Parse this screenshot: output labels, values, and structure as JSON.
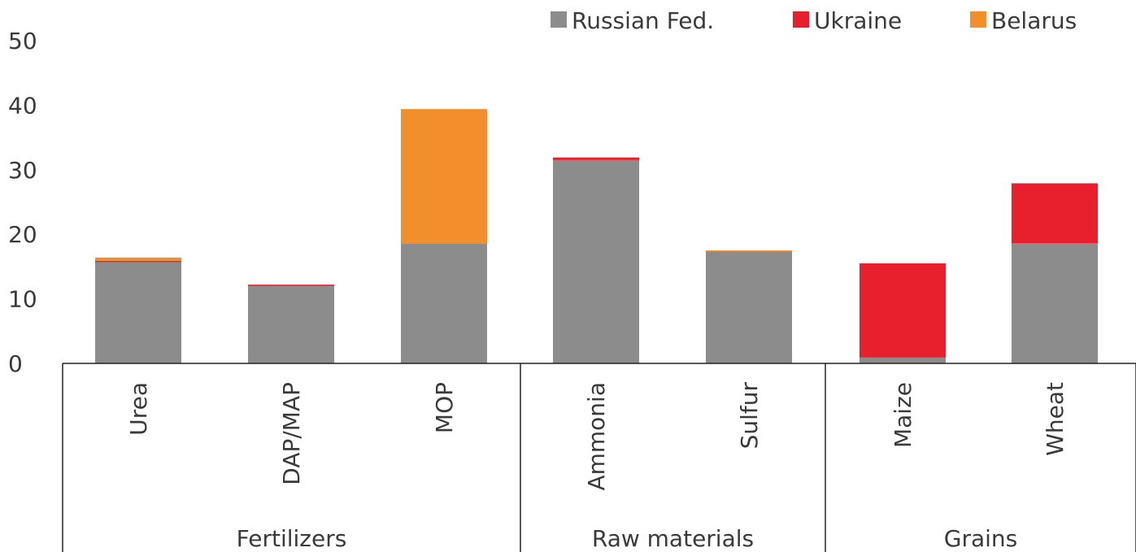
{
  "chart_data": {
    "type": "bar",
    "stacked": true,
    "categories": [
      "Urea",
      "DAP/MAP",
      "MOP",
      "Ammonia",
      "Sulfur",
      "Maize",
      "Wheat"
    ],
    "groups": [
      {
        "label": "Fertilizers",
        "categories": [
          "Urea",
          "DAP/MAP",
          "MOP"
        ]
      },
      {
        "label": "Raw materials",
        "categories": [
          "Ammonia",
          "Sulfur"
        ]
      },
      {
        "label": "Grains",
        "categories": [
          "Maize",
          "Wheat"
        ]
      }
    ],
    "series": [
      {
        "name": "Russian Fed.",
        "color": "#8c8c8c",
        "values": [
          15.8,
          12.1,
          18.6,
          31.5,
          17.4,
          0.9,
          18.6
        ]
      },
      {
        "name": "Ukraine",
        "color": "#e8202d",
        "values": [
          0.1,
          0.1,
          0.0,
          0.4,
          0.0,
          14.6,
          9.3
        ]
      },
      {
        "name": "Belarus",
        "color": "#f28e2b",
        "values": [
          0.5,
          0.0,
          20.8,
          0.0,
          0.1,
          0.0,
          0.0
        ]
      }
    ],
    "ylim": [
      0,
      50
    ],
    "yticks": [
      0,
      10,
      20,
      30,
      40,
      50
    ],
    "legend_position": "top-right",
    "grid": false
  }
}
